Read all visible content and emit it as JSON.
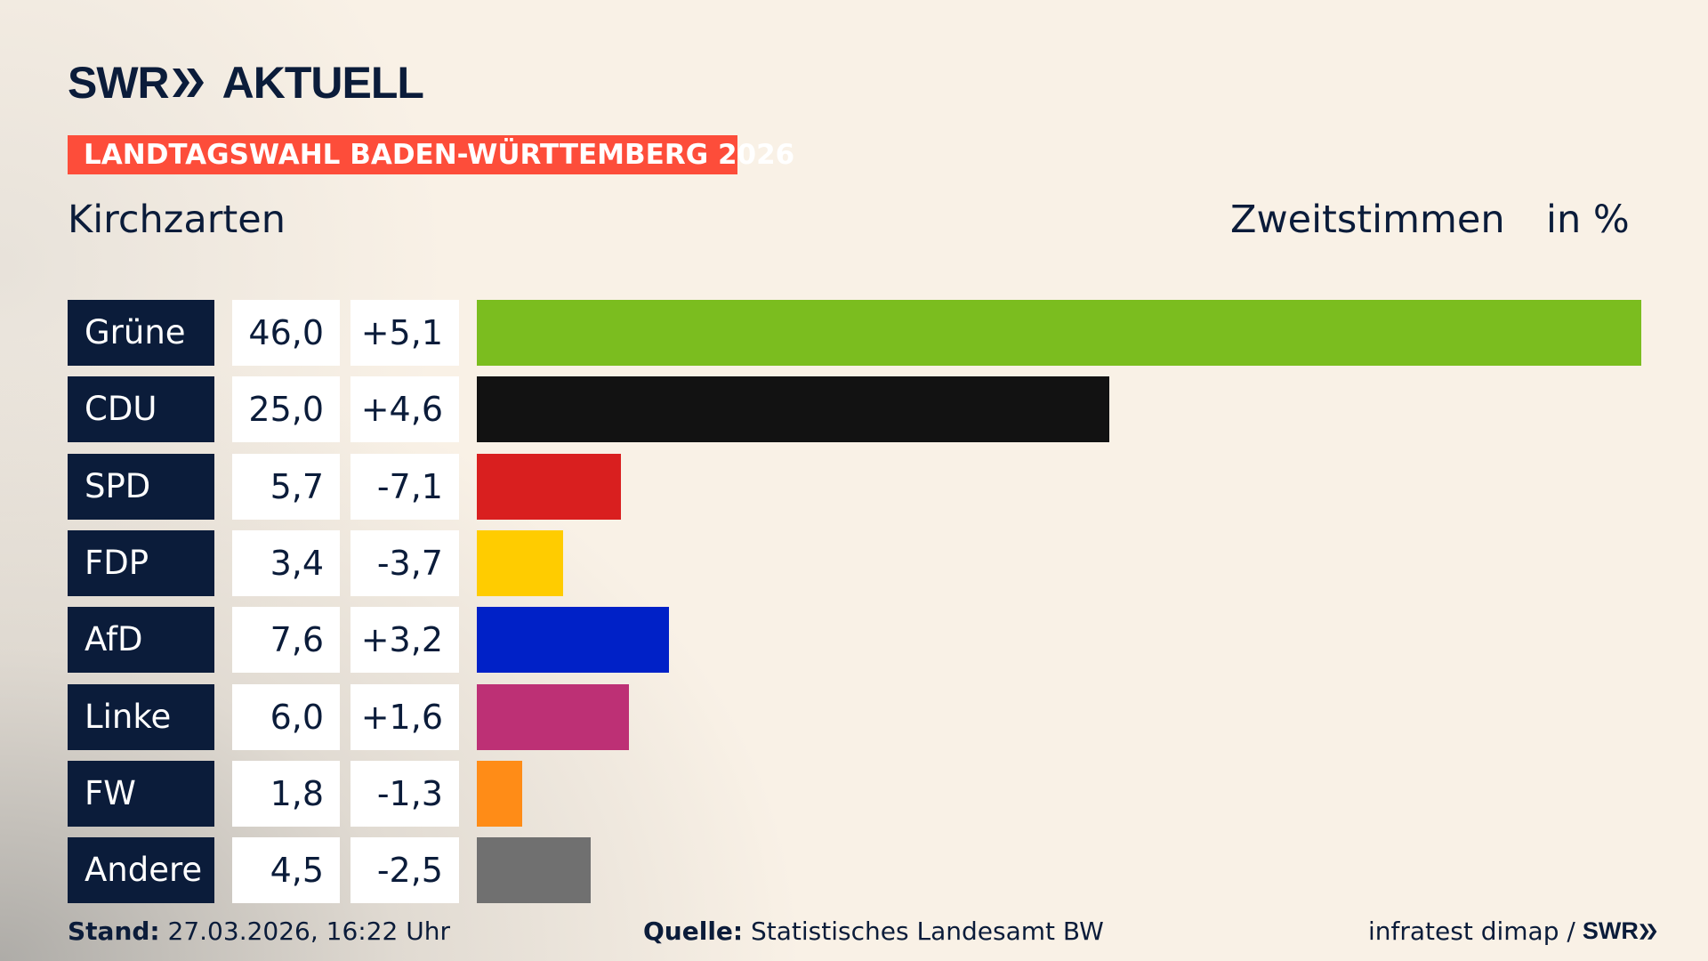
{
  "brand": {
    "logo": "SWR AKTUELL",
    "logo_swr": "SWR",
    "logo_aktuell": "AKTUELL"
  },
  "banner": "LANDTAGSWAHL BADEN-WÜRTTEMBERG 2026",
  "location": "Kirchzarten",
  "vote_type": "Zweitstimmen",
  "unit": "in %",
  "chart_data": {
    "type": "bar",
    "orientation": "horizontal",
    "categories": [
      "Grüne",
      "CDU",
      "SPD",
      "FDP",
      "AfD",
      "Linke",
      "FW",
      "Andere"
    ],
    "values": [
      46.0,
      25.0,
      5.7,
      3.4,
      7.6,
      6.0,
      1.8,
      4.5
    ],
    "value_labels": [
      "46,0",
      "25,0",
      "5,7",
      "3,4",
      "7,6",
      "6,0",
      "1,8",
      "4,5"
    ],
    "changes": [
      5.1,
      4.6,
      -7.1,
      -3.7,
      3.2,
      1.6,
      -1.3,
      -2.5
    ],
    "change_labels": [
      "+5,1",
      "+4,6",
      "-7,1",
      "-3,7",
      "+3,2",
      "+1,6",
      "-1,3",
      "-2,5"
    ],
    "colors": [
      "#7bbd1f",
      "#121212",
      "#d91f1f",
      "#ffcc00",
      "#0021c7",
      "#bd3075",
      "#ff8c17",
      "#707070"
    ],
    "xlim": [
      0,
      46.0
    ],
    "grid": false
  },
  "footer": {
    "stand_label": "Stand:",
    "stand_value": "27.03.2026, 16:22 Uhr",
    "source_label": "Quelle:",
    "source_value": "Statistisches Landesamt BW",
    "credit": "infratest dimap /",
    "credit_logo": "SWR"
  }
}
